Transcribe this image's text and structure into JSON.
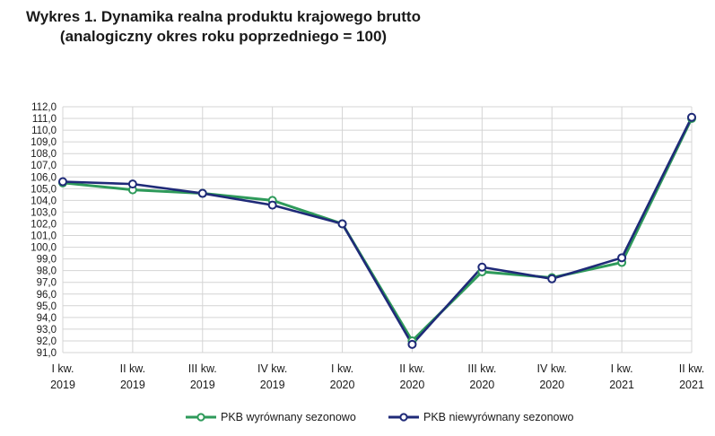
{
  "title_line1": "Wykres 1. Dynamika realna produktu krajowego brutto",
  "title_line2": "(analogiczny okres roku poprzedniego = 100)",
  "chart_data": {
    "type": "line",
    "title": "Wykres 1. Dynamika realna produktu krajowego brutto (analogiczny okres roku poprzedniego = 100)",
    "categories": [
      [
        "I kw.",
        "2019"
      ],
      [
        "II kw.",
        "2019"
      ],
      [
        "III kw.",
        "2019"
      ],
      [
        "IV kw.",
        "2019"
      ],
      [
        "I kw.",
        "2020"
      ],
      [
        "II kw.",
        "2020"
      ],
      [
        "III kw.",
        "2020"
      ],
      [
        "IV kw.",
        "2020"
      ],
      [
        "I kw.",
        "2021"
      ],
      [
        "II kw.",
        "2021"
      ]
    ],
    "y_ticks": [
      "91,0",
      "92,0",
      "93,0",
      "94,0",
      "95,0",
      "96,0",
      "97,0",
      "98,0",
      "99,0",
      "100,0",
      "101,0",
      "102,0",
      "103,0",
      "104,0",
      "105,0",
      "106,0",
      "107,0",
      "108,0",
      "109,0",
      "110,0",
      "111,0",
      "112,0"
    ],
    "ylim": [
      91,
      112
    ],
    "grid": true,
    "legend_position": "bottom",
    "series": [
      {
        "name": "PKB wyrównany sezonowo",
        "color": "#2e9a5a",
        "values": [
          105.5,
          104.9,
          104.6,
          104.0,
          102.0,
          92.0,
          97.9,
          97.4,
          98.7,
          111.0
        ]
      },
      {
        "name": "PKB niewyrównany sezonowo",
        "color": "#1f2a78",
        "values": [
          105.6,
          105.4,
          104.6,
          103.6,
          102.0,
          91.7,
          98.3,
          97.3,
          99.1,
          111.1
        ]
      }
    ]
  }
}
